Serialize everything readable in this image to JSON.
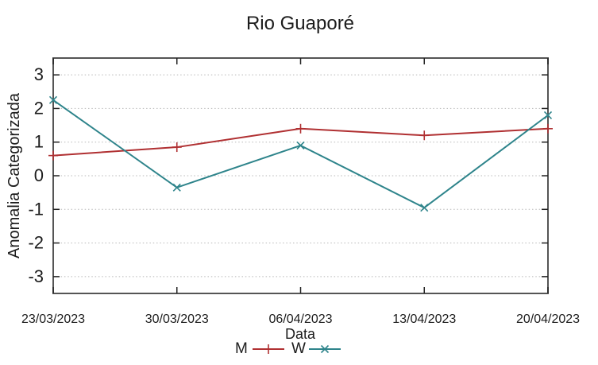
{
  "chart_data": {
    "type": "line",
    "title": "Rio Guaporé",
    "xlabel": "Data",
    "ylabel": "Anomalia Categorizada",
    "categories": [
      "23/03/2023",
      "30/03/2023",
      "06/04/2023",
      "13/04/2023",
      "20/04/2023"
    ],
    "series": [
      {
        "name": "M",
        "marker": "plus",
        "color": "#b03032",
        "values": [
          0.6,
          0.85,
          1.4,
          1.2,
          1.4
        ]
      },
      {
        "name": "W",
        "marker": "cross",
        "color": "#2e848b",
        "values": [
          2.25,
          -0.35,
          0.9,
          -0.95,
          1.8
        ]
      }
    ],
    "ylim": [
      -3.5,
      3.5
    ],
    "yticks": [
      -3,
      -2,
      -1,
      0,
      1,
      2,
      3
    ],
    "grid": "horizontal-dotted",
    "legend_position": "bottom-center"
  },
  "colors": {
    "background": "#ffffff",
    "border": "#555555",
    "tick": "#222222",
    "grid": "#b8b8b8",
    "text": "#1c1c1c"
  }
}
